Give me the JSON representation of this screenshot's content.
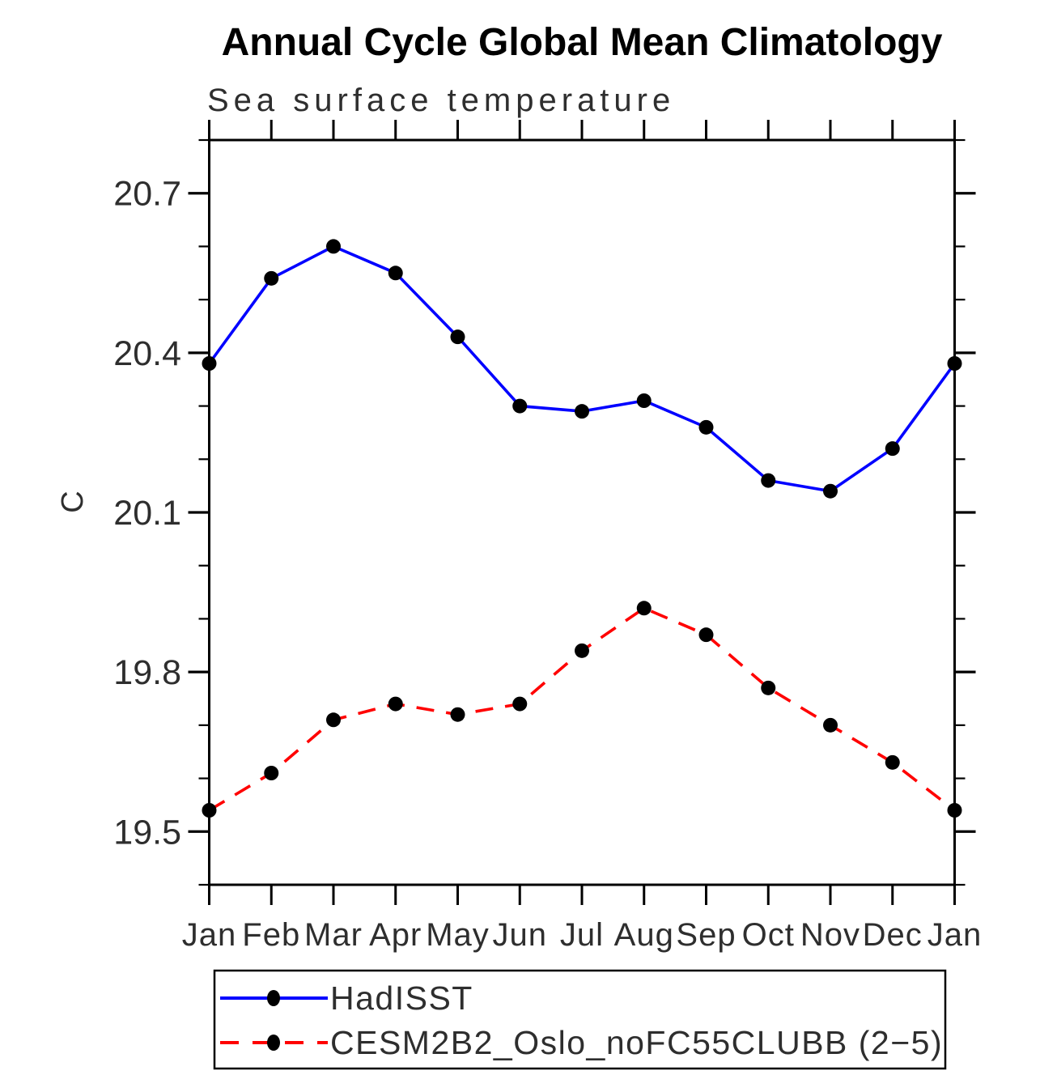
{
  "title": "Annual Cycle Global Mean Climatology",
  "subtitle": "Sea surface temperature",
  "y_axis_unit": "C",
  "colors": {
    "hadisst_line": "#0000ff",
    "cesm_line": "#ff0000",
    "marker": "#000000",
    "axis": "#000000",
    "label_text": "#2e2e2e",
    "title_text": "#000000",
    "background": "#ffffff"
  },
  "chart_data": {
    "type": "line",
    "title": "Annual Cycle Global Mean Climatology",
    "subtitle": "Sea surface temperature",
    "xlabel": "",
    "ylabel": "C",
    "grid": false,
    "legend_position": "bottom-left-box",
    "x_tick_labels": [
      "Jan",
      "Feb",
      "Mar",
      "Apr",
      "May",
      "Jun",
      "Jul",
      "Aug",
      "Sep",
      "Oct",
      "Nov",
      "Dec",
      "Jan"
    ],
    "y_tick_labels": [
      "20.7",
      "20.4",
      "20.1",
      "19.8",
      "19.5"
    ],
    "y_major_ticks": [
      20.7,
      20.4,
      20.1,
      19.8,
      19.5
    ],
    "y_minor_step": 0.1,
    "ylim": [
      19.4,
      20.8
    ],
    "series": [
      {
        "name": "HadISST",
        "color": "#0000ff",
        "line_style": "solid",
        "marker": "filled-circle",
        "values": [
          20.38,
          20.54,
          20.6,
          20.55,
          20.43,
          20.3,
          20.29,
          20.31,
          20.26,
          20.16,
          20.14,
          20.22,
          20.38
        ]
      },
      {
        "name": "CESM2B2_Oslo_noFC55CLUBB (2−5)",
        "color": "#ff0000",
        "line_style": "dashed",
        "marker": "filled-circle",
        "values": [
          19.54,
          19.61,
          19.71,
          19.74,
          19.72,
          19.74,
          19.84,
          19.92,
          19.87,
          19.77,
          19.7,
          19.63,
          19.54
        ]
      }
    ]
  }
}
